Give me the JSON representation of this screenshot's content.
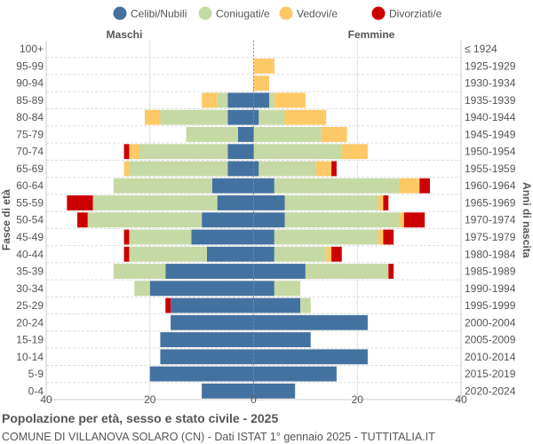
{
  "chart_data": {
    "type": "bar",
    "orientation": "horizontal-pyramid",
    "title": "Popolazione per età, sesso e stato civile - 2025",
    "subtitle": "COMUNE DI VILLANOVA SOLARO (CN) - Dati ISTAT 1° gennaio 2025 - TUTTITALIA.IT",
    "left_label": "Maschi",
    "right_label": "Femmine",
    "ylabel_left": "Fasce di età",
    "ylabel_right": "Anni di nascita",
    "xlim": [
      -40,
      40
    ],
    "xticks": [
      "40",
      "20",
      "0",
      "20",
      "40"
    ],
    "grid": true,
    "legend": "top",
    "age_groups": [
      "100+",
      "95-99",
      "90-94",
      "85-89",
      "80-84",
      "75-79",
      "70-74",
      "65-69",
      "60-64",
      "55-59",
      "50-54",
      "45-49",
      "40-44",
      "35-39",
      "30-34",
      "25-29",
      "20-24",
      "15-19",
      "10-14",
      "5-9",
      "0-4"
    ],
    "birth_years": [
      "≤ 1924",
      "1925-1929",
      "1930-1934",
      "1935-1939",
      "1940-1944",
      "1945-1949",
      "1950-1954",
      "1955-1959",
      "1960-1964",
      "1965-1969",
      "1970-1974",
      "1975-1979",
      "1980-1984",
      "1985-1989",
      "1990-1994",
      "1995-1999",
      "2000-2004",
      "2005-2009",
      "2010-2014",
      "2015-2019",
      "2020-2024"
    ],
    "series": [
      {
        "name": "Celibi/Nubili",
        "color": "#4472a0",
        "male": [
          0,
          0,
          0,
          5,
          5,
          3,
          5,
          5,
          8,
          7,
          10,
          12,
          9,
          17,
          20,
          16,
          16,
          18,
          18,
          20,
          10
        ],
        "female": [
          0,
          0,
          0,
          3,
          1,
          0,
          0,
          1,
          4,
          6,
          6,
          4,
          4,
          10,
          4,
          9,
          22,
          11,
          22,
          16,
          8
        ]
      },
      {
        "name": "Coniugati/e",
        "color": "#c5d9a4",
        "male": [
          0,
          0,
          0,
          2,
          13,
          10,
          17,
          19,
          19,
          24,
          22,
          12,
          15,
          10,
          3,
          0,
          0,
          0,
          0,
          0,
          0
        ],
        "female": [
          0,
          0,
          0,
          1,
          5,
          13,
          17,
          11,
          24,
          18,
          22,
          20,
          10,
          16,
          5,
          2,
          0,
          0,
          0,
          0,
          0
        ]
      },
      {
        "name": "Vedovi/e",
        "color": "#fdc966",
        "male": [
          0,
          0,
          0,
          3,
          3,
          0,
          2,
          1,
          0,
          0,
          0,
          0,
          0,
          0,
          0,
          0,
          0,
          0,
          0,
          0,
          0
        ],
        "female": [
          0,
          4,
          3,
          6,
          8,
          5,
          5,
          3,
          4,
          1,
          1,
          1,
          1,
          0,
          0,
          0,
          0,
          0,
          0,
          0,
          0
        ]
      },
      {
        "name": "Divorziati/e",
        "color": "#cc0000",
        "male": [
          0,
          0,
          0,
          0,
          0,
          0,
          1,
          0,
          0,
          5,
          2,
          1,
          1,
          0,
          0,
          1,
          0,
          0,
          0,
          0,
          0
        ],
        "female": [
          0,
          0,
          0,
          0,
          0,
          0,
          0,
          1,
          2,
          1,
          4,
          2,
          2,
          1,
          0,
          0,
          0,
          0,
          0,
          0,
          0
        ]
      }
    ]
  }
}
